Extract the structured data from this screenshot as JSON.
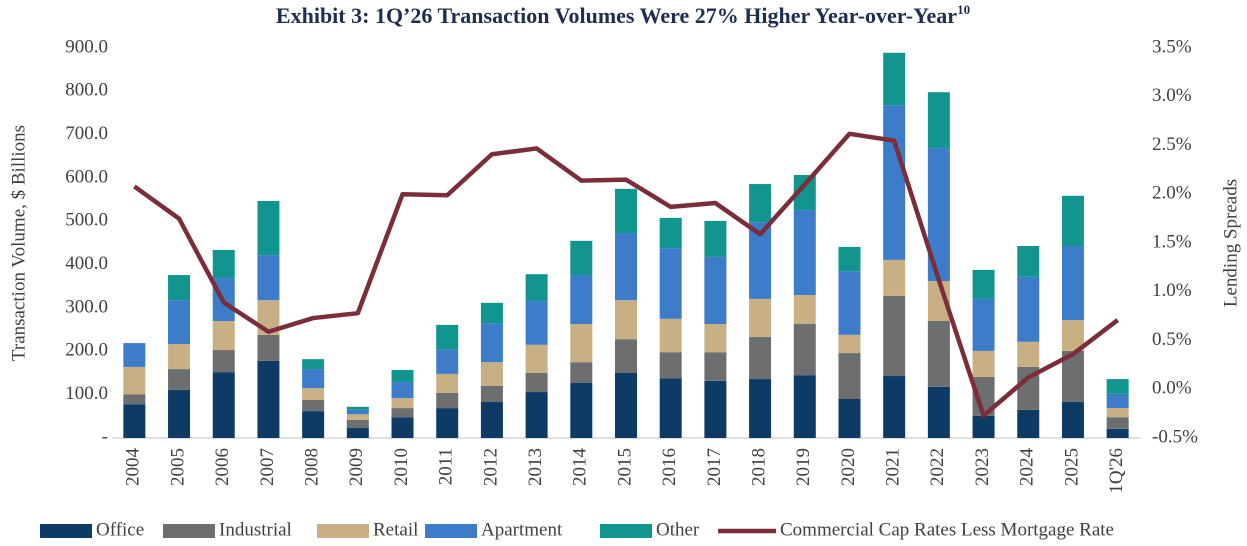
{
  "chart_data": {
    "type": "stacked-bar-line",
    "title": "Exhibit 3: 1Q’26 Transaction Volumes Were 27% Higher Year-over-Year",
    "title_superscript": "10",
    "y_label": "Transaction Volume, $ Billions",
    "y2_label": "Lending Spreads",
    "categories": [
      "2004",
      "2005",
      "2006",
      "2007",
      "2008",
      "2009",
      "2010",
      "2011",
      "2012",
      "2013",
      "2014",
      "2015",
      "2016",
      "2017",
      "2018",
      "2019",
      "2020",
      "2021",
      "2022",
      "2023",
      "2024",
      "2025",
      "1Q'26"
    ],
    "series": [
      {
        "name": "Office",
        "type": "bar",
        "color": "#0e3a66",
        "values": [
          78,
          111,
          152,
          178,
          62,
          23,
          48,
          69,
          83,
          106,
          127,
          150,
          138,
          132,
          136,
          145,
          90,
          143,
          118,
          51,
          65,
          83,
          21
        ]
      },
      {
        "name": "Industrial",
        "type": "bar",
        "color": "#6d6e70",
        "values": [
          23,
          48,
          51,
          60,
          26,
          19,
          21,
          35,
          37,
          44,
          48,
          78,
          60,
          66,
          97,
          118,
          106,
          185,
          152,
          90,
          99,
          118,
          27
        ]
      },
      {
        "name": "Retail",
        "type": "bar",
        "color": "#c8b084",
        "values": [
          63,
          58,
          67,
          80,
          27,
          13,
          23,
          44,
          55,
          65,
          88,
          90,
          77,
          65,
          88,
          67,
          42,
          83,
          92,
          60,
          58,
          71,
          21
        ]
      },
      {
        "name": "Apartment",
        "type": "bar",
        "color": "#3d7cc9",
        "values": [
          55,
          101,
          99,
          104,
          44,
          10,
          37,
          57,
          90,
          101,
          113,
          155,
          163,
          155,
          177,
          196,
          147,
          357,
          307,
          120,
          150,
          171,
          33
        ]
      },
      {
        "name": "Other",
        "type": "bar",
        "color": "#13958f",
        "values": [
          0,
          58,
          65,
          125,
          23,
          7,
          28,
          56,
          47,
          62,
          79,
          102,
          70,
          83,
          88,
          81,
          56,
          121,
          129,
          67,
          71,
          116,
          34
        ]
      },
      {
        "name": "Commercial Cap Rates Less Mortgage Rate",
        "type": "line",
        "axis": "y2",
        "color": "#7b2d3a",
        "values": [
          2.08,
          1.75,
          0.89,
          0.59,
          0.73,
          0.78,
          2.0,
          1.99,
          2.41,
          2.47,
          2.14,
          2.15,
          1.87,
          1.91,
          1.59,
          2.1,
          2.62,
          2.55,
          1.12,
          -0.27,
          0.12,
          0.36,
          0.71
        ]
      }
    ],
    "ylim": [
      0,
      900
    ],
    "yticks": [
      {
        "value": 0,
        "label": "-"
      },
      {
        "value": 100,
        "label": "100.0"
      },
      {
        "value": 200,
        "label": "200.0"
      },
      {
        "value": 300,
        "label": "300.0"
      },
      {
        "value": 400,
        "label": "400.0"
      },
      {
        "value": 500,
        "label": "500.0"
      },
      {
        "value": 600,
        "label": "600.0"
      },
      {
        "value": 700,
        "label": "700.0"
      },
      {
        "value": 800,
        "label": "800.0"
      },
      {
        "value": 900,
        "label": "900.0"
      }
    ],
    "y2lim": [
      -0.5,
      3.5
    ],
    "y2ticks": [
      {
        "value": -0.5,
        "label": "-0.5%"
      },
      {
        "value": 0,
        "label": "0.0%"
      },
      {
        "value": 0.5,
        "label": "0.5%"
      },
      {
        "value": 1,
        "label": "1.0%"
      },
      {
        "value": 1.5,
        "label": "1.5%"
      },
      {
        "value": 2,
        "label": "2.0%"
      },
      {
        "value": 2.5,
        "label": "2.5%"
      },
      {
        "value": 3,
        "label": "3.0%"
      },
      {
        "value": 3.5,
        "label": "3.5%"
      }
    ],
    "legend": "bottom"
  }
}
